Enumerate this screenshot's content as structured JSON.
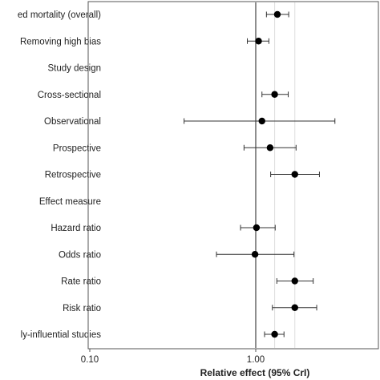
{
  "chart_data": {
    "type": "forest",
    "xlabel": "Relative effect (95% CrI)",
    "xscale": "log",
    "xlim": [
      0.1,
      10
    ],
    "xticks": [
      "0.10",
      "1.00"
    ],
    "reference_line": 1.0,
    "rows": [
      {
        "label": "ed mortality (overall)",
        "estimate": 1.35,
        "lower": 1.16,
        "upper": 1.58
      },
      {
        "label": "Removing high bias",
        "estimate": 1.04,
        "lower": 0.89,
        "upper": 1.2
      },
      {
        "label": "Study design",
        "estimate": null,
        "lower": null,
        "upper": null
      },
      {
        "label": "Cross-sectional",
        "estimate": 1.3,
        "lower": 1.09,
        "upper": 1.57
      },
      {
        "label": "Observational",
        "estimate": 1.09,
        "lower": 0.37,
        "upper": 3.0
      },
      {
        "label": "Prospective",
        "estimate": 1.22,
        "lower": 0.85,
        "upper": 1.75
      },
      {
        "label": "Retrospective",
        "estimate": 1.72,
        "lower": 1.23,
        "upper": 2.42
      },
      {
        "label": "Effect measure",
        "estimate": null,
        "lower": null,
        "upper": null
      },
      {
        "label": "Hazard ratio",
        "estimate": 1.01,
        "lower": 0.81,
        "upper": 1.31
      },
      {
        "label": "Odds ratio",
        "estimate": 0.99,
        "lower": 0.58,
        "upper": 1.7
      },
      {
        "label": "Rate ratio",
        "estimate": 1.72,
        "lower": 1.34,
        "upper": 2.22
      },
      {
        "label": "Risk ratio",
        "estimate": 1.72,
        "lower": 1.26,
        "upper": 2.33
      },
      {
        "label": "ly-influential studies",
        "estimate": 1.3,
        "lower": 1.13,
        "upper": 1.48
      }
    ]
  }
}
